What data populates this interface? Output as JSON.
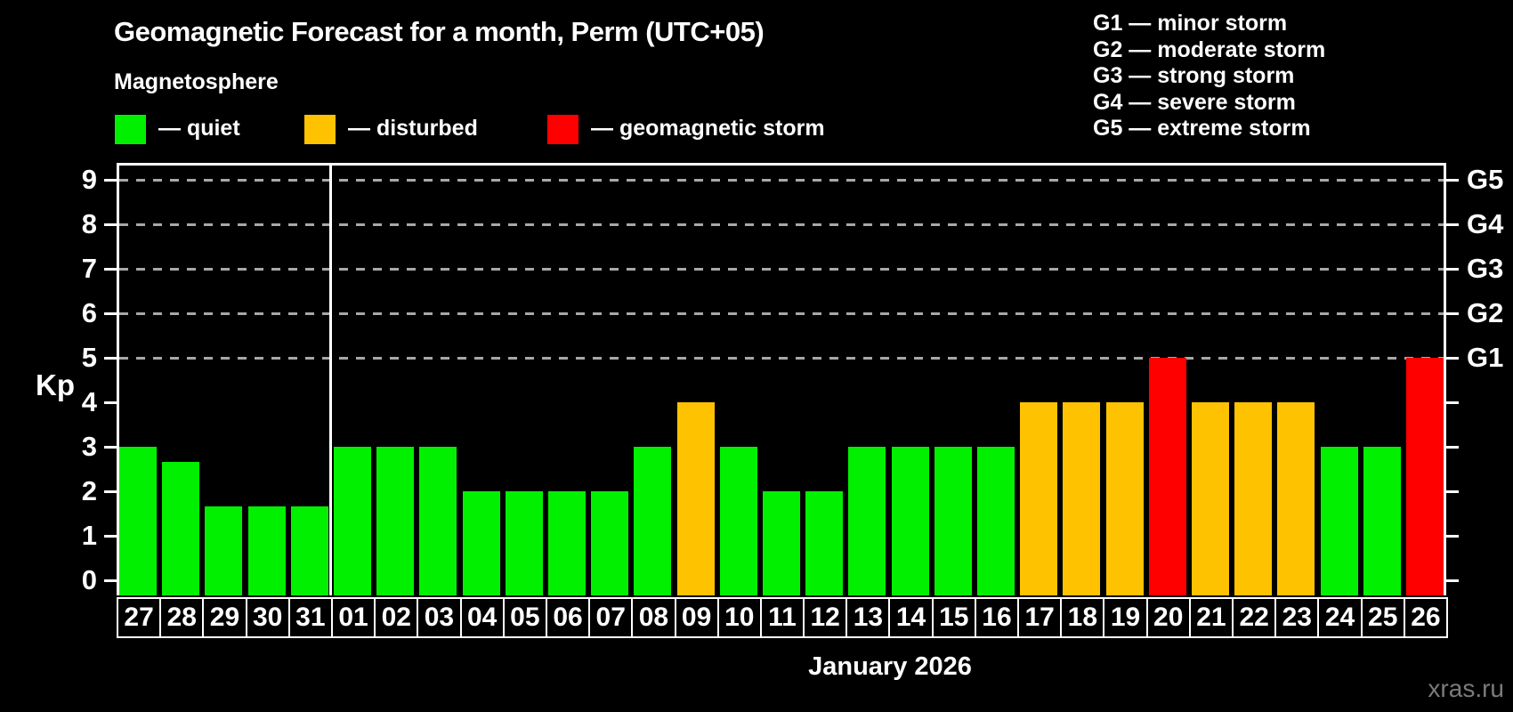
{
  "header": {
    "title": "Geomagnetic Forecast for a month, Perm (UTC+05)",
    "subtitle": "Magnetosphere"
  },
  "legend": {
    "items": [
      {
        "label": "— quiet",
        "status": "quiet",
        "color": "#00f000"
      },
      {
        "label": "— disturbed",
        "status": "disturbed",
        "color": "#ffc200"
      },
      {
        "label": "— geomagnetic storm",
        "status": "storm",
        "color": "#ff0000"
      }
    ]
  },
  "g_legend": {
    "items": [
      "G1 — minor storm",
      "G2 — moderate storm",
      "G3 — strong storm",
      "G4 — severe storm",
      "G5 — extreme storm"
    ]
  },
  "watermark": "xras.ru",
  "chart_data": {
    "type": "bar",
    "title": "Geomagnetic Forecast for a month, Perm (UTC+05)",
    "xlabel": "January 2026",
    "ylabel": "Kp",
    "ylim": [
      -0.35,
      9.35
    ],
    "y_ticks": [
      0,
      1,
      2,
      3,
      4,
      5,
      6,
      7,
      8,
      9
    ],
    "grid_values": [
      5,
      6,
      7,
      8,
      9
    ],
    "grid_on": true,
    "legend_position": "top",
    "right_axis_labels": [
      {
        "value": 5,
        "label": "G1"
      },
      {
        "value": 6,
        "label": "G2"
      },
      {
        "value": 7,
        "label": "G3"
      },
      {
        "value": 8,
        "label": "G4"
      },
      {
        "value": 9,
        "label": "G5"
      }
    ],
    "month_separator_index": 5,
    "categories": [
      "27",
      "28",
      "29",
      "30",
      "31",
      "01",
      "02",
      "03",
      "04",
      "05",
      "06",
      "07",
      "08",
      "09",
      "10",
      "11",
      "12",
      "13",
      "14",
      "15",
      "16",
      "17",
      "18",
      "19",
      "20",
      "21",
      "22",
      "23",
      "24",
      "25",
      "26"
    ],
    "values": [
      3,
      2.67,
      1.67,
      1.67,
      1.67,
      3,
      3,
      3,
      2,
      2,
      2,
      2,
      3,
      4,
      3,
      2,
      2,
      3,
      3,
      3,
      3,
      4,
      4,
      4,
      5,
      4,
      4,
      4,
      3,
      3,
      5
    ],
    "statuses": [
      "quiet",
      "quiet",
      "quiet",
      "quiet",
      "quiet",
      "quiet",
      "quiet",
      "quiet",
      "quiet",
      "quiet",
      "quiet",
      "quiet",
      "quiet",
      "disturbed",
      "quiet",
      "quiet",
      "quiet",
      "quiet",
      "quiet",
      "quiet",
      "quiet",
      "disturbed",
      "disturbed",
      "disturbed",
      "storm",
      "disturbed",
      "disturbed",
      "disturbed",
      "quiet",
      "quiet",
      "storm"
    ],
    "status_colors": {
      "quiet": "#00f000",
      "disturbed": "#ffc200",
      "storm": "#ff0000"
    }
  }
}
